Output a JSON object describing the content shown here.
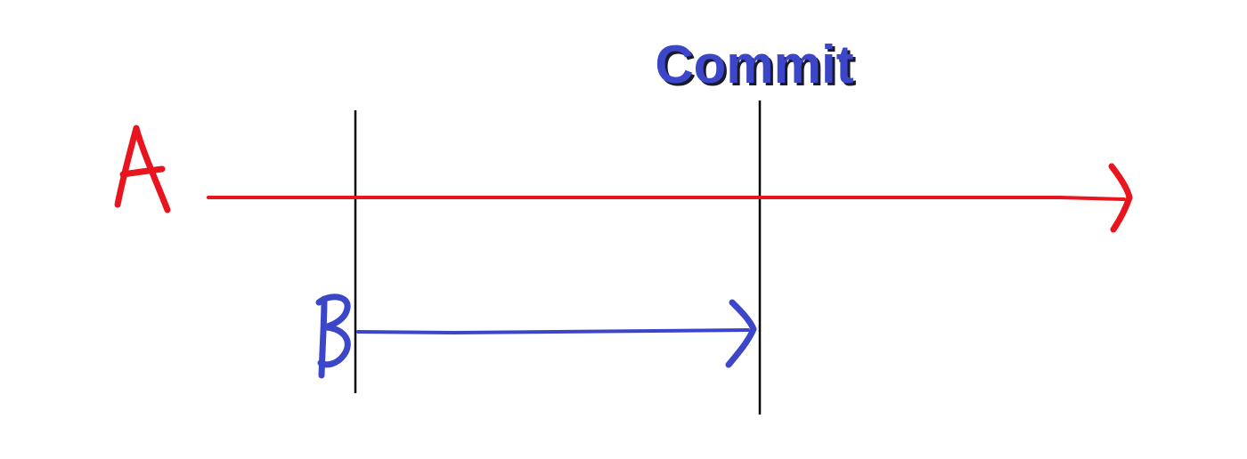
{
  "diagram": {
    "commit_label": "Commit",
    "timeline_a_label": "A",
    "timeline_b_label": "B",
    "colors": {
      "timeline_a": "#e8141e",
      "timeline_b": "#3c46c8",
      "commit_text": "#3c46c8",
      "commit_shadow": "#1a1a2e",
      "markers": "#000000",
      "background": "#ffffff"
    }
  }
}
